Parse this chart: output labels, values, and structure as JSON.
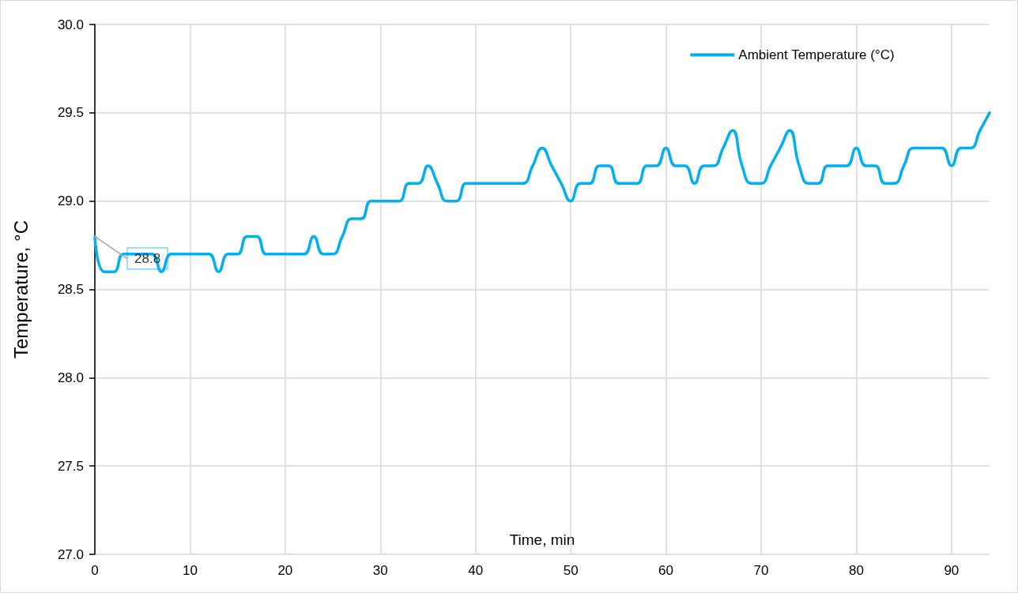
{
  "chart_data": {
    "type": "line",
    "xlabel": "Time, min",
    "ylabel": "Temperature, °C",
    "x": [
      0,
      1,
      2,
      3,
      4,
      5,
      6,
      7,
      8,
      9,
      10,
      11,
      12,
      13,
      14,
      15,
      16,
      17,
      18,
      19,
      20,
      21,
      22,
      23,
      24,
      25,
      26,
      27,
      28,
      29,
      30,
      31,
      32,
      33,
      34,
      35,
      36,
      37,
      38,
      39,
      40,
      41,
      42,
      43,
      44,
      45,
      46,
      47,
      48,
      49,
      50,
      51,
      52,
      53,
      54,
      55,
      56,
      57,
      58,
      59,
      60,
      61,
      62,
      63,
      64,
      65,
      66,
      67,
      68,
      69,
      70,
      71,
      72,
      73,
      74,
      75,
      76,
      77,
      78,
      79,
      80,
      81,
      82,
      83,
      84,
      85,
      86,
      87,
      88,
      89,
      90,
      91,
      92,
      93,
      94
    ],
    "series": [
      {
        "name": "Ambient Temperature (°C)",
        "color": "#00b0f0",
        "values": [
          28.8,
          28.6,
          28.6,
          28.7,
          28.7,
          28.7,
          28.7,
          28.6,
          28.7,
          28.7,
          28.7,
          28.7,
          28.7,
          28.6,
          28.7,
          28.7,
          28.8,
          28.8,
          28.7,
          28.7,
          28.7,
          28.7,
          28.7,
          28.8,
          28.7,
          28.7,
          28.8,
          28.9,
          28.9,
          29.0,
          29.0,
          29.0,
          29.0,
          29.1,
          29.1,
          29.2,
          29.1,
          29.0,
          29.0,
          29.1,
          29.1,
          29.1,
          29.1,
          29.1,
          29.1,
          29.1,
          29.2,
          29.3,
          29.2,
          29.1,
          29.0,
          29.1,
          29.1,
          29.2,
          29.2,
          29.1,
          29.1,
          29.1,
          29.2,
          29.2,
          29.3,
          29.2,
          29.2,
          29.1,
          29.2,
          29.2,
          29.3,
          29.4,
          29.2,
          29.1,
          29.1,
          29.2,
          29.3,
          29.4,
          29.2,
          29.1,
          29.1,
          29.2,
          29.2,
          29.2,
          29.3,
          29.2,
          29.2,
          29.1,
          29.1,
          29.2,
          29.3,
          29.3,
          29.3,
          29.3,
          29.2,
          29.3,
          29.3,
          29.4,
          29.5
        ]
      }
    ],
    "annotations": [
      {
        "text": "28.8",
        "x": 0,
        "y": 28.8
      }
    ],
    "xlim": [
      0,
      94
    ],
    "xticks": [
      0,
      10,
      20,
      30,
      40,
      50,
      60,
      70,
      80,
      90
    ],
    "ylim": [
      27,
      30
    ],
    "yticks": [
      {
        "value": 27,
        "label": "27.0"
      },
      27.5,
      {
        "value": 28,
        "label": "28.0"
      },
      28.5,
      {
        "value": 29,
        "label": "29.0"
      },
      29.5,
      {
        "value": 30,
        "label": "30.0"
      }
    ],
    "grid": true,
    "legend": "top right",
    "marker": "none",
    "line_style": "solid"
  }
}
